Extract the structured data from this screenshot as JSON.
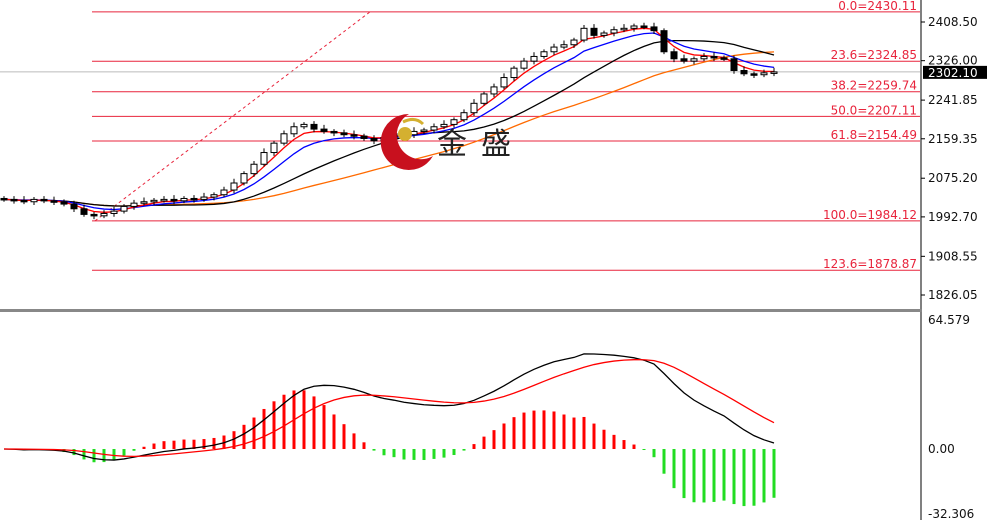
{
  "chart_data": {
    "type": "candlestick",
    "price_axis": {
      "ticks": [
        "2408.50",
        "2326.00",
        "2241.85",
        "2159.35",
        "2075.20",
        "1992.70",
        "1908.55",
        "1826.05"
      ],
      "range": [
        1820,
        2440
      ]
    },
    "current_price": "2302.10",
    "fibonacci": [
      {
        "label": "0.0",
        "value": 2430.11,
        "text": "0.0=2430.11"
      },
      {
        "label": "23.6",
        "value": 2324.85,
        "text": "23.6=2324.85"
      },
      {
        "label": "38.2",
        "value": 2259.74,
        "text": "38.2=2259.74"
      },
      {
        "label": "50.0",
        "value": 2207.11,
        "text": "50.0=2207.11"
      },
      {
        "label": "61.8",
        "value": 2154.49,
        "text": "61.8=2154.49"
      },
      {
        "label": "100.0",
        "value": 1984.12,
        "text": "100.0=1984.12"
      },
      {
        "label": "123.6",
        "value": 1878.87,
        "text": "123.6=1878.87"
      }
    ],
    "closes": [
      2030,
      2028,
      2025,
      2030,
      2027,
      2025,
      2020,
      2010,
      1998,
      1995,
      2000,
      2005,
      2015,
      2022,
      2025,
      2028,
      2030,
      2027,
      2032,
      2030,
      2035,
      2040,
      2050,
      2065,
      2085,
      2105,
      2130,
      2150,
      2170,
      2185,
      2190,
      2180,
      2175,
      2172,
      2168,
      2165,
      2160,
      2155,
      2162,
      2170,
      2168,
      2175,
      2178,
      2185,
      2190,
      2200,
      2215,
      2235,
      2255,
      2270,
      2290,
      2310,
      2325,
      2335,
      2345,
      2355,
      2360,
      2370,
      2395,
      2380,
      2385,
      2392,
      2395,
      2400,
      2398,
      2390,
      2345,
      2330,
      2325,
      2330,
      2335,
      2332,
      2330,
      2305,
      2298,
      2296,
      2300,
      2302
    ],
    "macd_axis": {
      "ticks": [
        "64.579",
        "0.00",
        "-32.306"
      ],
      "range": [
        -32.306,
        64.579
      ]
    },
    "colors": {
      "fib": "#e8243c",
      "ma_fast": "#ff0000",
      "ma_mid": "#0000ff",
      "ma_slow": "#000000",
      "ma_long": "#ff6a00",
      "hist_up": "#ff0000",
      "hist_down": "#22dd22",
      "macd": "#000000",
      "signal": "#ff0000"
    }
  },
  "logo": {
    "text": "金盛"
  }
}
